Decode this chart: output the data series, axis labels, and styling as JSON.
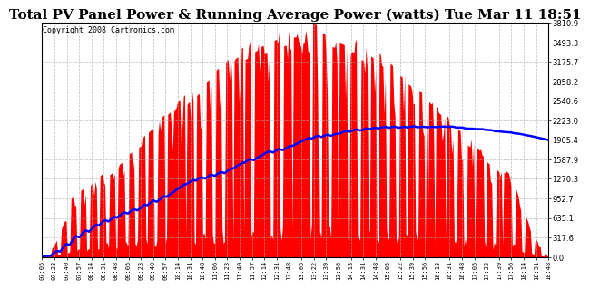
{
  "title": "Total PV Panel Power & Running Average Power (watts) Tue Mar 11 18:51",
  "copyright": "Copyright 2008 Cartronics.com",
  "ylabel_right_ticks": [
    0.0,
    317.6,
    635.1,
    952.7,
    1270.3,
    1587.9,
    1905.4,
    2223.0,
    2540.6,
    2858.2,
    3175.7,
    3493.3,
    3810.9
  ],
  "ymax": 3810.9,
  "ymin": 0.0,
  "bg_color": "#ffffff",
  "plot_bg_color": "#ffffff",
  "grid_color": "#aaaaaa",
  "bar_color": "#ff0000",
  "avg_color": "#0000ff",
  "title_fontsize": 11,
  "copyright_fontsize": 6,
  "x_tick_labels": [
    "07:05",
    "07:23",
    "07:40",
    "07:57",
    "08:14",
    "08:31",
    "08:48",
    "09:05",
    "09:23",
    "09:40",
    "09:57",
    "10:14",
    "10:31",
    "10:48",
    "11:06",
    "11:23",
    "11:40",
    "11:57",
    "12:14",
    "12:31",
    "12:48",
    "13:05",
    "13:22",
    "13:39",
    "13:56",
    "14:13",
    "14:31",
    "14:48",
    "15:05",
    "15:22",
    "15:39",
    "15:56",
    "16:13",
    "16:31",
    "16:48",
    "17:05",
    "17:22",
    "17:39",
    "17:56",
    "18:14",
    "18:31",
    "18:48"
  ]
}
